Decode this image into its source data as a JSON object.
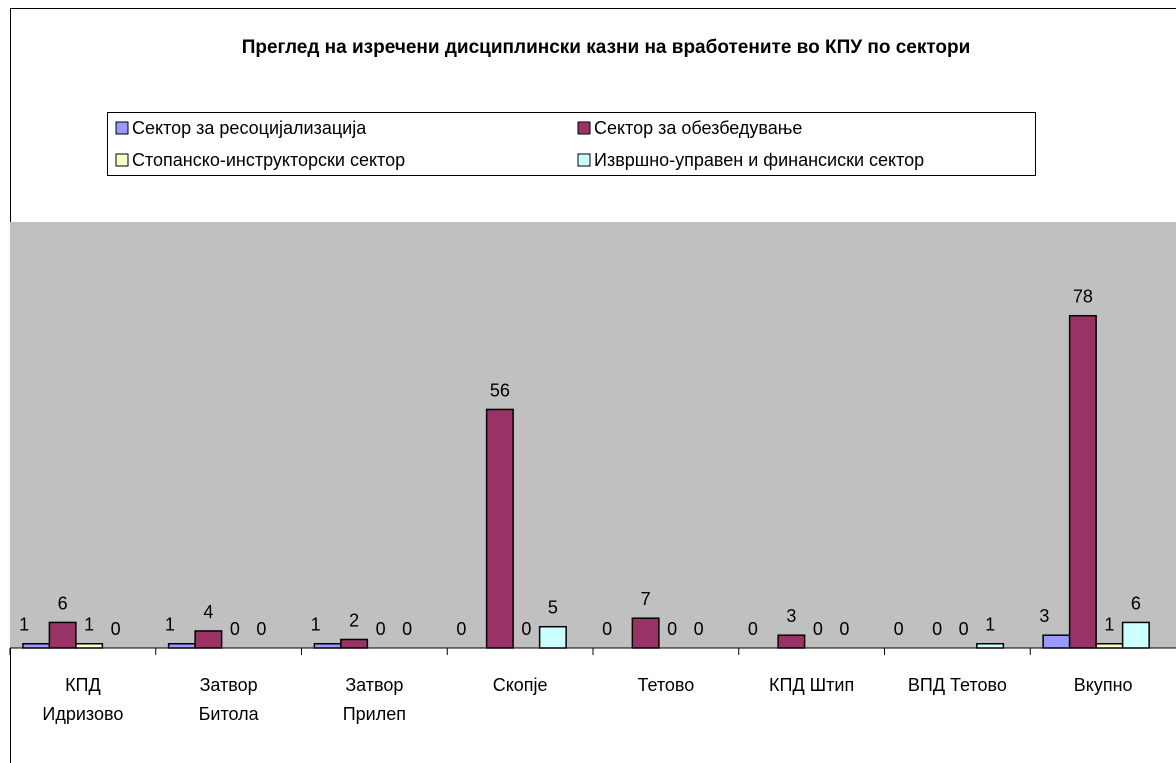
{
  "chart_data": {
    "type": "bar",
    "title": "Преглед на изречени дисциплински казни на вработените во КПУ по сектори",
    "categories": [
      "КПД\nИдризово",
      "Затвор\nБитола",
      "Затвор\nПрилеп",
      "Скопје",
      "Тетово",
      "КПД Штип",
      "ВПД Тетово",
      "Вкупно"
    ],
    "series": [
      {
        "name": "Сектор за ресоцијализација",
        "color": "#9999ff",
        "values": [
          1,
          1,
          1,
          0,
          0,
          0,
          0,
          3
        ]
      },
      {
        "name": "Сектор за обезбедување",
        "color": "#993366",
        "values": [
          6,
          4,
          2,
          56,
          7,
          3,
          0,
          78
        ]
      },
      {
        "name": "Стопанско-инструкторски сектор",
        "color": "#ffffcc",
        "values": [
          1,
          0,
          0,
          0,
          0,
          0,
          0,
          1
        ]
      },
      {
        "name": "Извршно-управен и финансиски сектор",
        "color": "#ccffff",
        "values": [
          0,
          0,
          0,
          5,
          0,
          0,
          1,
          6
        ]
      }
    ],
    "ylim": [
      0,
      100
    ],
    "grid": false,
    "plot_background": "#c0c0c0"
  }
}
